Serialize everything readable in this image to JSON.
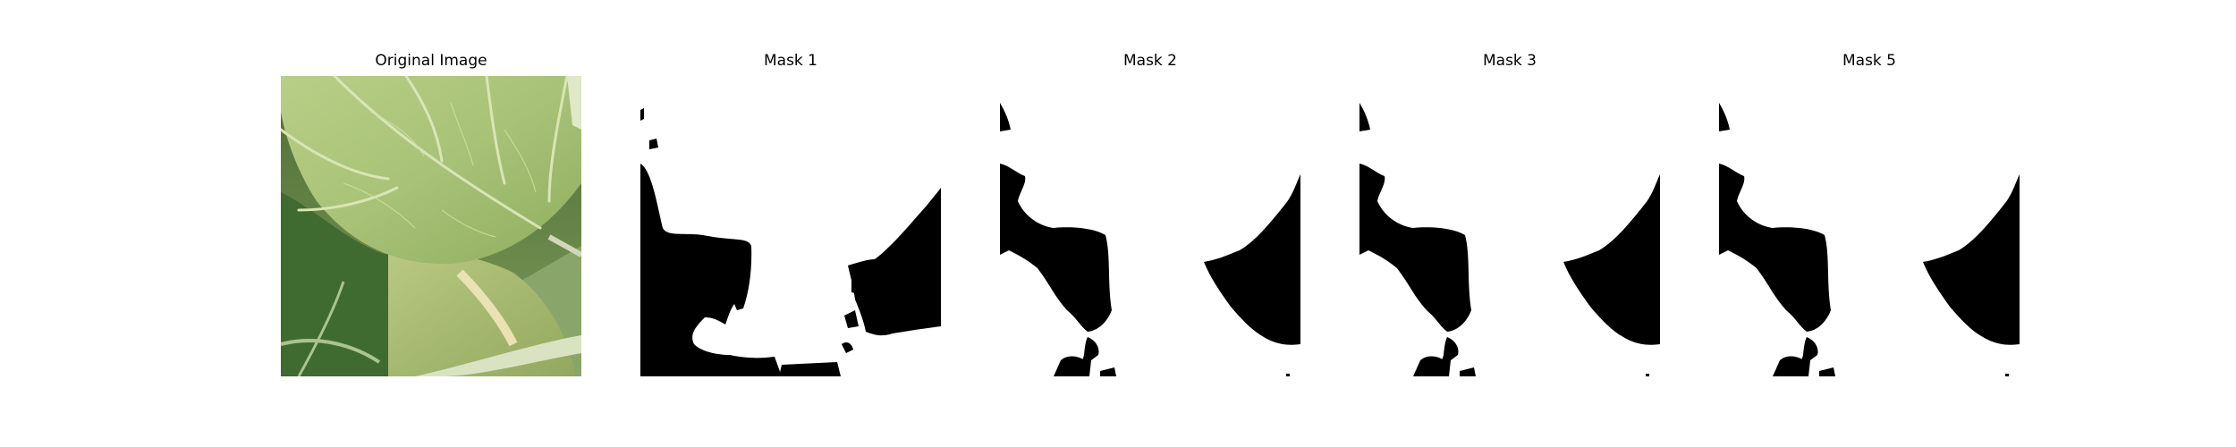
{
  "figure": {
    "panels": [
      {
        "title": "Original Image",
        "kind": "photo",
        "subject": "green leaf close-up"
      },
      {
        "title": "Mask 1",
        "kind": "binary-mask"
      },
      {
        "title": "Mask 2",
        "kind": "binary-mask"
      },
      {
        "title": "Mask 3",
        "kind": "binary-mask"
      },
      {
        "title": "Mask 5",
        "kind": "binary-mask"
      }
    ],
    "colors": {
      "mask_foreground": "#ffffff",
      "mask_background": "#000000",
      "leaf_light": "#c7d99a",
      "leaf_dark": "#5f7f3e"
    }
  }
}
